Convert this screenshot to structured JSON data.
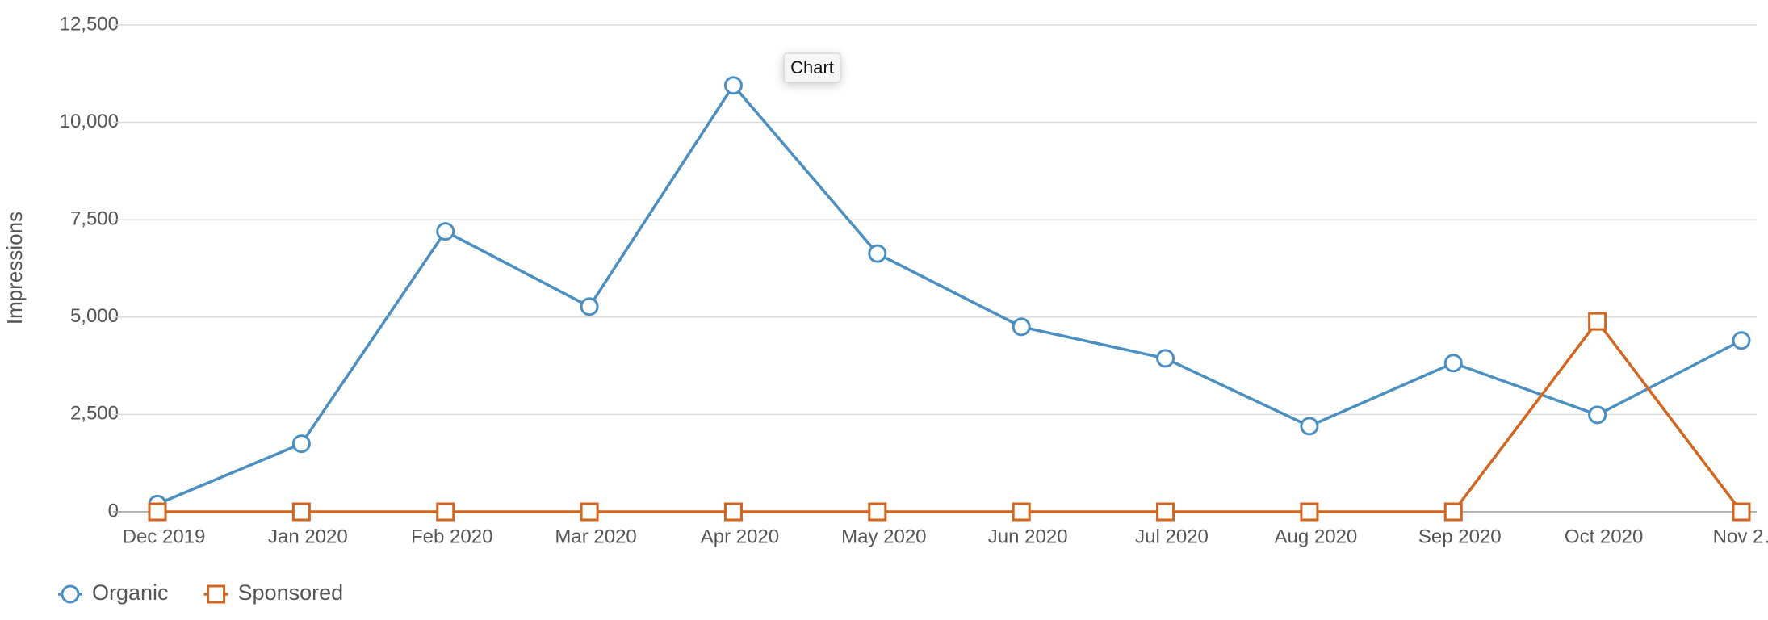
{
  "chart_data": {
    "type": "line",
    "tooltip": "Chart",
    "y_label": "Impressions",
    "categories": [
      "Dec 2019",
      "Jan 2020",
      "Feb 2020",
      "Mar 2020",
      "Apr 2020",
      "May 2020",
      "Jun 2020",
      "Jul 2020",
      "Aug 2020",
      "Sep 2020",
      "Oct 2020",
      "Nov 2…"
    ],
    "series": [
      {
        "name": "Organic",
        "color": "#4a8fc1",
        "marker": "circle",
        "values": [
          200,
          1750,
          7200,
          5270,
          10950,
          6630,
          4750,
          3940,
          2200,
          3820,
          2490,
          4400
        ]
      },
      {
        "name": "Sponsored",
        "color": "#d0661f",
        "marker": "square",
        "values": [
          0,
          0,
          0,
          0,
          0,
          0,
          0,
          0,
          0,
          0,
          4890,
          0
        ]
      }
    ],
    "ylim": [
      0,
      12500
    ],
    "yticks": [
      0,
      {
        "value": 2500,
        "label": "2,500"
      },
      {
        "value": 5000,
        "label": "5,000"
      },
      {
        "value": 7500,
        "label": "7,500"
      },
      {
        "value": 10000,
        "label": "10,000"
      },
      {
        "value": 12500,
        "label": "12,500"
      }
    ],
    "grid": true
  }
}
